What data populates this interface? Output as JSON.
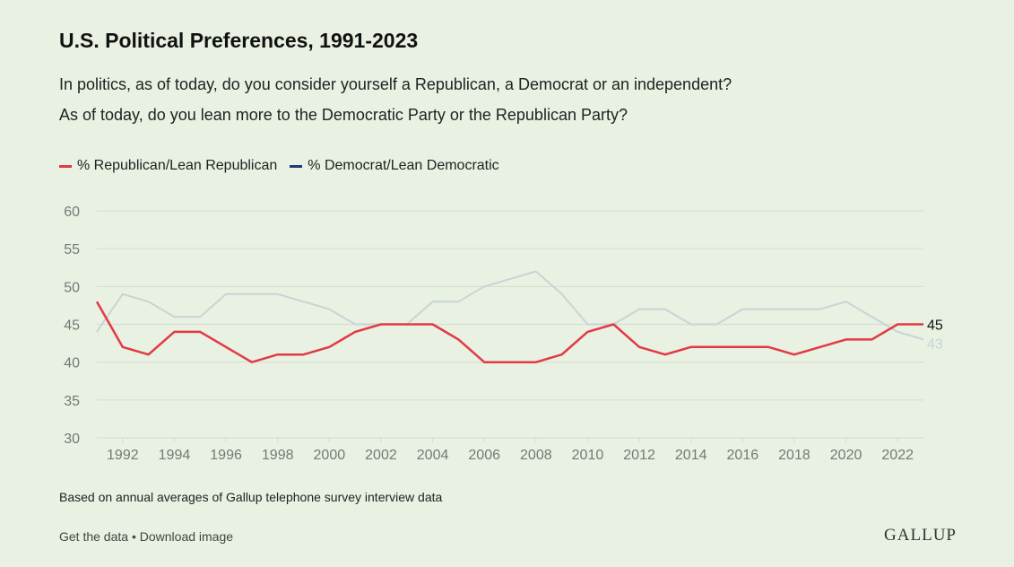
{
  "header": {
    "title": "U.S. Political Preferences, 1991-2023",
    "subtitle_1": "In politics, as of today, do you consider yourself a Republican, a Democrat or an independent?",
    "subtitle_2": "As of today, do you lean more to the Democratic Party or the Republican Party?"
  },
  "footer": {
    "note": "Based on annual averages of Gallup telephone survey interview data",
    "get_data": "Get the data",
    "separator": " • ",
    "download": "Download image",
    "logo": "GALLUP"
  },
  "colors": {
    "republican": "#e23a45",
    "democrat": "#1f3b7a",
    "democrat_muted": "#c8d4d6",
    "grid": "#d3dcd0",
    "axis_text": "#777777"
  },
  "chart_data": {
    "type": "line",
    "title": "U.S. Political Preferences, 1991-2023",
    "xlabel": "",
    "ylabel": "",
    "x": [
      1991,
      1992,
      1993,
      1994,
      1995,
      1996,
      1997,
      1998,
      1999,
      2000,
      2001,
      2002,
      2003,
      2004,
      2005,
      2006,
      2007,
      2008,
      2009,
      2010,
      2011,
      2012,
      2013,
      2014,
      2015,
      2016,
      2017,
      2018,
      2019,
      2020,
      2021,
      2022,
      2023
    ],
    "x_tick_labels": [
      "1992",
      "1994",
      "1996",
      "1998",
      "2000",
      "2002",
      "2004",
      "2006",
      "2008",
      "2010",
      "2012",
      "2014",
      "2016",
      "2018",
      "2020",
      "2022"
    ],
    "ylim": [
      30,
      60
    ],
    "y_tick_labels": [
      "30",
      "35",
      "40",
      "45",
      "50",
      "55",
      "60"
    ],
    "grid": true,
    "legend_position": "top-left",
    "series": [
      {
        "name": "% Republican/Lean Republican",
        "values": [
          48,
          42,
          41,
          44,
          44,
          42,
          40,
          41,
          41,
          42,
          44,
          45,
          45,
          45,
          43,
          40,
          40,
          40,
          41,
          44,
          45,
          42,
          41,
          42,
          42,
          42,
          42,
          41,
          42,
          43,
          43,
          45,
          45
        ],
        "end_label": "45"
      },
      {
        "name": "% Democrat/Lean Democratic",
        "values": [
          44,
          49,
          48,
          46,
          46,
          49,
          49,
          49,
          48,
          47,
          45,
          45,
          45,
          48,
          48,
          50,
          51,
          52,
          49,
          45,
          45,
          47,
          47,
          45,
          45,
          47,
          47,
          47,
          47,
          48,
          46,
          44,
          43
        ],
        "end_label": "43"
      }
    ]
  }
}
